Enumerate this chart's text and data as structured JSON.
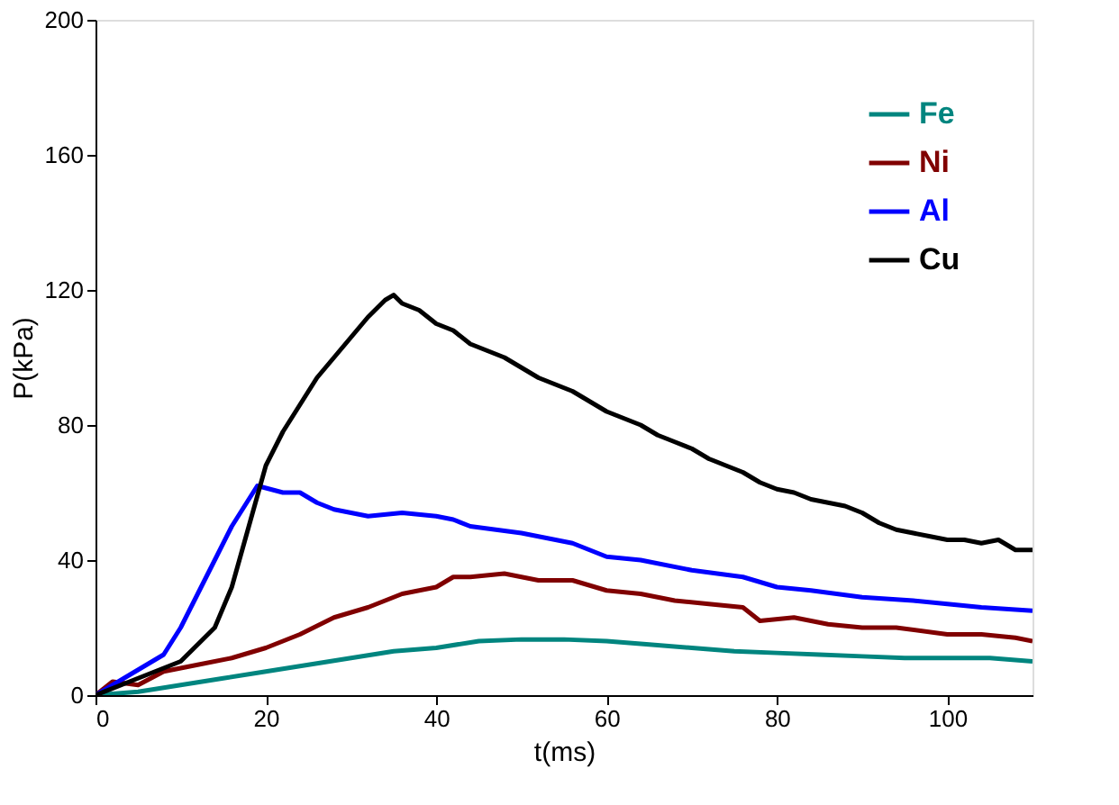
{
  "chart_data": {
    "type": "line",
    "xlabel": "t(ms)",
    "ylabel": "P(kPa)",
    "xlim": [
      0,
      110
    ],
    "ylim": [
      0,
      200
    ],
    "xticks": [
      0,
      20,
      40,
      60,
      80,
      100
    ],
    "yticks": [
      0,
      40,
      80,
      120,
      160,
      200
    ],
    "grid": false,
    "legend": "top right",
    "line_style": "solid",
    "marker": "none",
    "series": [
      {
        "name": "Fe",
        "color": "#00857f",
        "x": [
          0,
          5,
          10,
          15,
          20,
          25,
          30,
          35,
          40,
          45,
          50,
          55,
          60,
          65,
          70,
          75,
          80,
          85,
          90,
          95,
          100,
          105,
          110
        ],
        "values": [
          0,
          1,
          3,
          5,
          7,
          9,
          11,
          13,
          14,
          16,
          16.5,
          16.5,
          16,
          15,
          14,
          13,
          12.5,
          12,
          11.5,
          11,
          11,
          11,
          10
        ]
      },
      {
        "name": "Ni",
        "color": "#800000",
        "x": [
          0,
          2,
          5,
          8,
          12,
          16,
          20,
          24,
          28,
          32,
          36,
          40,
          42,
          44,
          48,
          52,
          56,
          60,
          64,
          68,
          72,
          76,
          78,
          82,
          86,
          90,
          94,
          100,
          104,
          108,
          110
        ],
        "values": [
          0,
          4,
          3,
          7,
          9,
          11,
          14,
          18,
          23,
          26,
          30,
          32,
          35,
          35,
          36,
          34,
          34,
          31,
          30,
          28,
          27,
          26,
          22,
          23,
          21,
          20,
          20,
          18,
          18,
          17,
          16
        ]
      },
      {
        "name": "Al",
        "color": "#0000ff",
        "x": [
          0,
          4,
          8,
          10,
          12,
          14,
          16,
          18,
          19,
          22,
          24,
          26,
          28,
          30,
          32,
          36,
          40,
          42,
          44,
          50,
          56,
          60,
          64,
          70,
          76,
          80,
          84,
          90,
          96,
          100,
          104,
          110
        ],
        "values": [
          0,
          6,
          12,
          20,
          30,
          40,
          50,
          58,
          62,
          60,
          60,
          57,
          55,
          54,
          53,
          54,
          53,
          52,
          50,
          48,
          45,
          41,
          40,
          37,
          35,
          32,
          31,
          29,
          28,
          27,
          26,
          25
        ]
      },
      {
        "name": "Cu",
        "color": "#000000",
        "x": [
          0,
          5,
          10,
          14,
          16,
          18,
          20,
          22,
          24,
          26,
          28,
          30,
          32,
          34,
          35,
          36,
          38,
          40,
          42,
          44,
          46,
          48,
          50,
          52,
          54,
          56,
          58,
          60,
          62,
          64,
          66,
          68,
          70,
          72,
          74,
          76,
          78,
          80,
          82,
          84,
          86,
          88,
          90,
          92,
          94,
          96,
          98,
          100,
          102,
          104,
          106,
          108,
          110
        ],
        "values": [
          0,
          5,
          10,
          20,
          32,
          50,
          68,
          78,
          86,
          94,
          100,
          106,
          112,
          117,
          118.5,
          116,
          114,
          110,
          108,
          104,
          102,
          100,
          97,
          94,
          92,
          90,
          87,
          84,
          82,
          80,
          77,
          75,
          73,
          70,
          68,
          66,
          63,
          61,
          60,
          58,
          57,
          56,
          54,
          51,
          49,
          48,
          47,
          46,
          46,
          45,
          46,
          43,
          43
        ]
      }
    ]
  }
}
